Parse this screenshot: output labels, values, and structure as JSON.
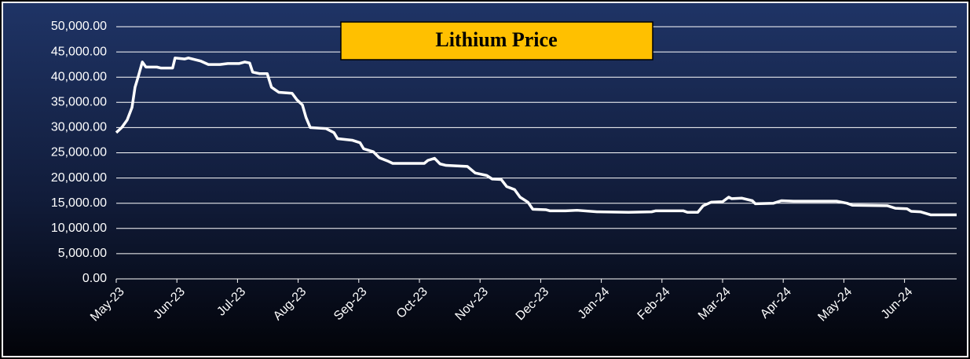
{
  "chart_data": {
    "type": "line",
    "title": "Lithium Price",
    "xlim": [
      0,
      13.86
    ],
    "xticks": [
      {
        "value": 0,
        "label": "May-23"
      },
      {
        "value": 1,
        "label": "Jun-23"
      },
      {
        "value": 2,
        "label": "Jul-23"
      },
      {
        "value": 3,
        "label": "Aug-23"
      },
      {
        "value": 4,
        "label": "Sep-23"
      },
      {
        "value": 5,
        "label": "Oct-23"
      },
      {
        "value": 6,
        "label": "Nov-23"
      },
      {
        "value": 7,
        "label": "Dec-23"
      },
      {
        "value": 8,
        "label": "Jan-24"
      },
      {
        "value": 9,
        "label": "Feb-24"
      },
      {
        "value": 10,
        "label": "Mar-24"
      },
      {
        "value": 11,
        "label": "Apr-24"
      },
      {
        "value": 12,
        "label": "May-24"
      },
      {
        "value": 13,
        "label": "Jun-24"
      }
    ],
    "ylim": [
      0,
      50000
    ],
    "yticks": [
      {
        "value": 0,
        "label": "0.00"
      },
      {
        "value": 5000,
        "label": "5,000.00"
      },
      {
        "value": 10000,
        "label": "10,000.00"
      },
      {
        "value": 15000,
        "label": "15,000.00"
      },
      {
        "value": 20000,
        "label": "20,000.00"
      },
      {
        "value": 25000,
        "label": "25,000.00"
      },
      {
        "value": 30000,
        "label": "30,000.00"
      },
      {
        "value": 35000,
        "label": "35,000.00"
      },
      {
        "value": 40000,
        "label": "40,000.00"
      },
      {
        "value": 45000,
        "label": "45,000.00"
      },
      {
        "value": 50000,
        "label": "50,000.00"
      }
    ],
    "grid": true,
    "color": "#ffffff",
    "x": [
      0,
      0.09,
      0.18,
      0.26,
      0.31,
      0.36,
      0.43,
      0.49,
      0.67,
      0.74,
      0.93,
      0.97,
      1.13,
      1.19,
      1.39,
      1.52,
      1.71,
      1.84,
      2.03,
      2.12,
      2.2,
      2.25,
      2.36,
      2.49,
      2.56,
      2.68,
      2.9,
      2.98,
      3.07,
      3.13,
      3.2,
      3.46,
      3.59,
      3.65,
      3.89,
      4.02,
      4.08,
      4.24,
      4.34,
      4.49,
      4.56,
      5.08,
      5.14,
      5.25,
      5.34,
      5.44,
      5.79,
      5.92,
      6.11,
      6.2,
      6.35,
      6.44,
      6.57,
      6.66,
      6.79,
      6.87,
      7.09,
      7.15,
      7.41,
      7.6,
      7.93,
      8.45,
      8.83,
      8.9,
      9.35,
      9.42,
      9.59,
      9.68,
      9.81,
      10.0,
      10.1,
      10.15,
      10.32,
      10.49,
      10.54,
      10.84,
      10.97,
      11.17,
      11.88,
      12.05,
      12.14,
      12.72,
      12.85,
      13.04,
      13.11,
      13.26,
      13.43,
      13.86
    ],
    "values": [
      29000,
      30000,
      31500,
      34000,
      38000,
      40000,
      43000,
      42000,
      42000,
      41800,
      41800,
      43800,
      43600,
      43800,
      43200,
      42500,
      42500,
      42700,
      42700,
      43000,
      42800,
      41000,
      40700,
      40700,
      38000,
      37000,
      36800,
      35500,
      34500,
      32000,
      30000,
      29800,
      29000,
      27800,
      27500,
      27000,
      25800,
      25200,
      24000,
      23300,
      22900,
      22900,
      23500,
      23900,
      22800,
      22500,
      22300,
      21000,
      20500,
      19800,
      19700,
      18300,
      17700,
      16200,
      15200,
      13800,
      13700,
      13500,
      13500,
      13600,
      13300,
      13200,
      13300,
      13500,
      13500,
      13200,
      13200,
      14500,
      15200,
      15300,
      16200,
      15900,
      16000,
      15500,
      14900,
      15000,
      15500,
      15400,
      15400,
      15000,
      14600,
      14500,
      14000,
      13900,
      13400,
      13300,
      12700,
      12700
    ]
  }
}
